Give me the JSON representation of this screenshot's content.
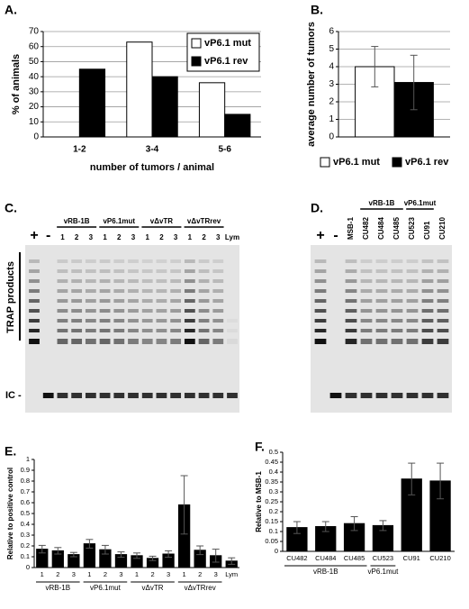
{
  "chart_data": [
    {
      "type": "bar",
      "panel": "A.",
      "ylabel": "% of animals",
      "xlabel": "number of tumors / animal",
      "categories": [
        "1-2",
        "3-4",
        "5-6"
      ],
      "series": [
        {
          "name": "vP6.1 mut",
          "color": "#ffffff",
          "values": [
            0,
            63,
            36
          ]
        },
        {
          "name": "vP6.1 rev",
          "color": "#000000",
          "values": [
            45,
            40,
            15
          ]
        }
      ],
      "ylim": [
        0,
        70
      ],
      "yticks": [
        0,
        10,
        20,
        30,
        40,
        50,
        60,
        70
      ],
      "grid": true,
      "legend": "upper right"
    },
    {
      "type": "bar",
      "panel": "B.",
      "ylabel": "average number of tumors",
      "categories": [
        null
      ],
      "series": [
        {
          "name": "vP6.1 mut",
          "color": "#ffffff",
          "values": [
            4.0
          ],
          "errors": [
            1.15
          ]
        },
        {
          "name": "vP6.1 rev",
          "color": "#000000",
          "values": [
            3.1
          ],
          "errors": [
            1.55
          ]
        }
      ],
      "ylim": [
        0,
        6
      ],
      "yticks": [
        0,
        1,
        2,
        3,
        4,
        5,
        6
      ],
      "grid": true,
      "legend": "bottom"
    },
    {
      "type": "bar",
      "panel": "E.",
      "ylabel": "Relative to positive control",
      "categories": [
        "1",
        "2",
        "3",
        "1",
        "2",
        "3",
        "1",
        "2",
        "3",
        "1",
        "2",
        "3",
        "Lym"
      ],
      "groups": [
        "vRB-1B",
        "vP6.1mut",
        "vΔvTR",
        "vΔvTRrev"
      ],
      "values": [
        0.17,
        0.155,
        0.12,
        0.22,
        0.165,
        0.12,
        0.11,
        0.085,
        0.125,
        0.58,
        0.16,
        0.11,
        0.06
      ],
      "errors": [
        0.035,
        0.03,
        0.02,
        0.04,
        0.04,
        0.025,
        0.025,
        0.02,
        0.03,
        0.27,
        0.04,
        0.06,
        0.03
      ],
      "color": "#000000",
      "ylim": [
        0,
        1
      ],
      "yticks": [
        0,
        0.1,
        0.2,
        0.3,
        0.4,
        0.5,
        0.6,
        0.7,
        0.8,
        0.9,
        1
      ],
      "grid": false
    },
    {
      "type": "bar",
      "panel": "F.",
      "ylabel": "Relative to MSB-1",
      "categories": [
        "CU482",
        "CU484",
        "CU485",
        "CU523",
        "CU91",
        "CU210"
      ],
      "groups": [
        "vRB-1B",
        "vP6.1mut"
      ],
      "values": [
        0.12,
        0.125,
        0.14,
        0.13,
        0.365,
        0.355
      ],
      "errors": [
        0.03,
        0.025,
        0.035,
        0.025,
        0.08,
        0.09
      ],
      "color": "#000000",
      "ylim": [
        0,
        0.5
      ],
      "yticks": [
        0,
        0.05,
        0.1,
        0.15,
        0.2,
        0.25,
        0.3,
        0.35,
        0.4,
        0.45,
        0.5
      ],
      "grid": false
    }
  ],
  "gels": [
    {
      "panel": "C.",
      "lanes": [
        "+",
        "-",
        "1",
        "2",
        "3",
        "1",
        "2",
        "3",
        "1",
        "2",
        "3",
        "1",
        "2",
        "3",
        "Lym"
      ],
      "groups": [
        "vRB-1B",
        "vP6.1mut",
        "vΔvTR",
        "vΔvTRrev"
      ],
      "side_label": "TRAP products",
      "marker": "IC -"
    },
    {
      "panel": "D.",
      "lanes": [
        "+",
        "-",
        "MSB-1",
        "CU482",
        "CU484",
        "CU485",
        "CU523",
        "CU91",
        "CU210"
      ],
      "groups": [
        "vRB-1B",
        "vP6.1mut"
      ]
    }
  ]
}
